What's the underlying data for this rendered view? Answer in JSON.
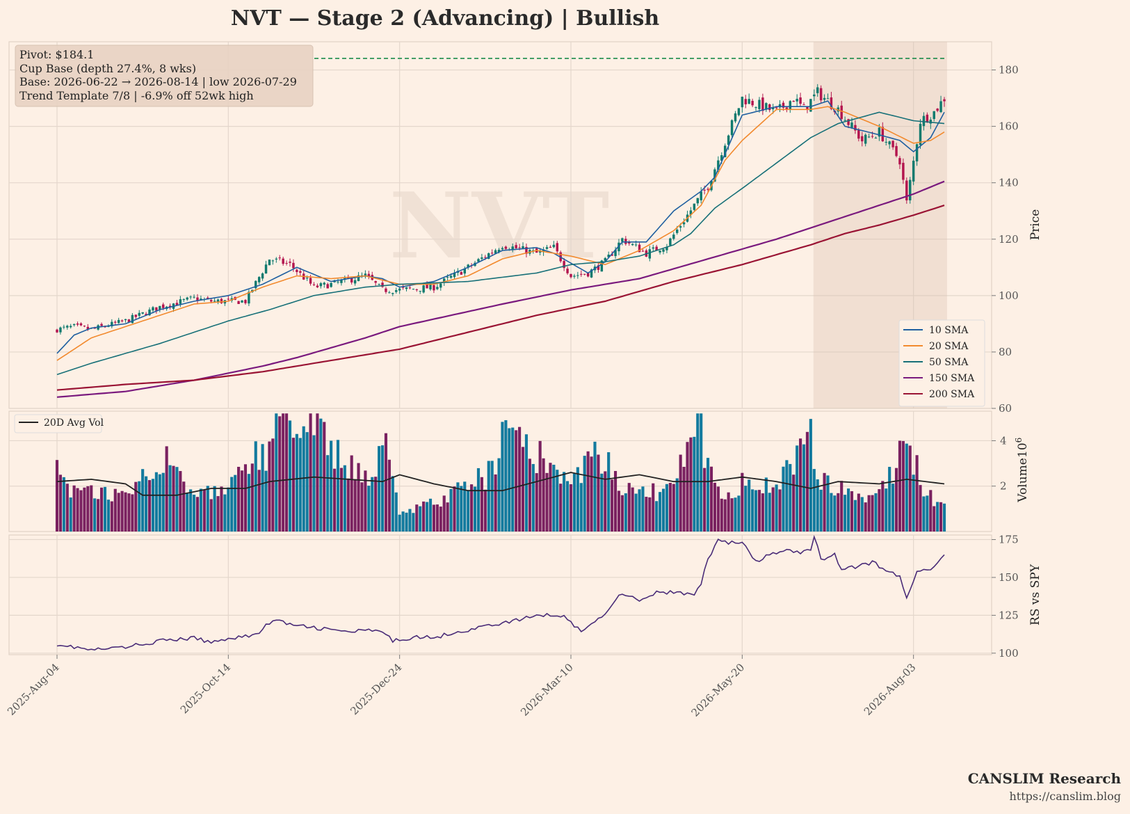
{
  "title": "NVT  —  Stage 2 (Advancing)  |  Bullish",
  "watermark": "NVT",
  "annotation": {
    "lines": [
      "Pivot: $184.1",
      "Cup Base  (depth 27.4%, 8 wks)",
      "Base: 2026-06-22 → 2026-08-14  |  low 2026-07-29",
      "Trend Template 7/8  |  -6.9% off 52wk high"
    ]
  },
  "branding": {
    "name": "CANSLIM Research",
    "url": "https://canslim.blog"
  },
  "chart_data": [
    {
      "type": "candlestick",
      "panel": "price",
      "ylabel": "Price",
      "ylim": [
        60,
        190
      ],
      "yticks": [
        60,
        80,
        100,
        120,
        140,
        160,
        180
      ],
      "x_tick_labels": [
        "2025-Aug-04",
        "2025-Oct-14",
        "2025-Dec-24",
        "2026-Mar-10",
        "2026-May-20",
        "2026-Aug-03"
      ],
      "x_tick_index": [
        0,
        50,
        100,
        150,
        200,
        250
      ],
      "n_bars": 260,
      "grid": true,
      "pivot": 184.1,
      "base_shade_index": [
        221,
        259
      ],
      "close_keypoints": [
        [
          0,
          88
        ],
        [
          5,
          89
        ],
        [
          10,
          88
        ],
        [
          20,
          91
        ],
        [
          30,
          96
        ],
        [
          40,
          99
        ],
        [
          45,
          98
        ],
        [
          55,
          98
        ],
        [
          62,
          113
        ],
        [
          68,
          111
        ],
        [
          75,
          103
        ],
        [
          80,
          104
        ],
        [
          90,
          107
        ],
        [
          95,
          102
        ],
        [
          100,
          102
        ],
        [
          110,
          103
        ],
        [
          120,
          110
        ],
        [
          130,
          118
        ],
        [
          140,
          115
        ],
        [
          145,
          117
        ],
        [
          150,
          107
        ],
        [
          155,
          108
        ],
        [
          160,
          112
        ],
        [
          165,
          120
        ],
        [
          172,
          115
        ],
        [
          178,
          118
        ],
        [
          190,
          139
        ],
        [
          200,
          170
        ],
        [
          210,
          165
        ],
        [
          215,
          170
        ],
        [
          218,
          166
        ],
        [
          222,
          172
        ],
        [
          228,
          166
        ],
        [
          235,
          155
        ],
        [
          240,
          158
        ],
        [
          246,
          148
        ],
        [
          248,
          133
        ],
        [
          252,
          162
        ],
        [
          256,
          165
        ],
        [
          259,
          170
        ]
      ],
      "series": [
        {
          "name": "10 SMA",
          "color": "#1f5fa0",
          "points": [
            [
              0,
              79.5
            ],
            [
              5,
              86
            ],
            [
              10,
              88.5
            ],
            [
              20,
              90
            ],
            [
              30,
              95
            ],
            [
              40,
              98
            ],
            [
              50,
              100
            ],
            [
              60,
              104
            ],
            [
              70,
              110
            ],
            [
              80,
              105
            ],
            [
              90,
              107
            ],
            [
              95,
              106
            ],
            [
              100,
              103
            ],
            [
              110,
              105
            ],
            [
              120,
              110
            ],
            [
              130,
              116
            ],
            [
              140,
              117
            ],
            [
              145,
              115
            ],
            [
              155,
              108
            ],
            [
              160,
              112
            ],
            [
              165,
              119
            ],
            [
              172,
              119
            ],
            [
              180,
              130
            ],
            [
              188,
              137
            ],
            [
              192,
              142
            ],
            [
              200,
              164
            ],
            [
              210,
              167
            ],
            [
              220,
              167
            ],
            [
              225,
              169
            ],
            [
              230,
              160
            ],
            [
              240,
              157
            ],
            [
              246,
              155
            ],
            [
              250,
              151
            ],
            [
              255,
              156
            ],
            [
              259,
              165
            ]
          ]
        },
        {
          "name": "20 SMA",
          "color": "#f28a2e",
          "points": [
            [
              0,
              77
            ],
            [
              10,
              85
            ],
            [
              20,
              89
            ],
            [
              30,
              93
            ],
            [
              40,
              97
            ],
            [
              50,
              98
            ],
            [
              60,
              103
            ],
            [
              70,
              107
            ],
            [
              80,
              106
            ],
            [
              90,
              107
            ],
            [
              100,
              104
            ],
            [
              110,
              104
            ],
            [
              120,
              107
            ],
            [
              130,
              113
            ],
            [
              140,
              116
            ],
            [
              150,
              114
            ],
            [
              160,
              111
            ],
            [
              170,
              116
            ],
            [
              180,
              123
            ],
            [
              188,
              132
            ],
            [
              195,
              148
            ],
            [
              200,
              155
            ],
            [
              210,
              166
            ],
            [
              220,
              166
            ],
            [
              225,
              167
            ],
            [
              230,
              165
            ],
            [
              240,
              160
            ],
            [
              250,
              154
            ],
            [
              255,
              155
            ],
            [
              259,
              158
            ]
          ]
        },
        {
          "name": "50 SMA",
          "color": "#177078",
          "points": [
            [
              0,
              72
            ],
            [
              10,
              76
            ],
            [
              30,
              83
            ],
            [
              50,
              91
            ],
            [
              62,
              95
            ],
            [
              75,
              100
            ],
            [
              90,
              103
            ],
            [
              100,
              104
            ],
            [
              120,
              105
            ],
            [
              140,
              108
            ],
            [
              150,
              111
            ],
            [
              160,
              112
            ],
            [
              170,
              114
            ],
            [
              180,
              118
            ],
            [
              185,
              122
            ],
            [
              192,
              131
            ],
            [
              200,
              138
            ],
            [
              210,
              147
            ],
            [
              220,
              156
            ],
            [
              228,
              161
            ],
            [
              240,
              165
            ],
            [
              250,
              162
            ],
            [
              259,
              161
            ]
          ]
        },
        {
          "name": "150 SMA",
          "color": "#7a1a7e",
          "points": [
            [
              0,
              64
            ],
            [
              20,
              66
            ],
            [
              40,
              70
            ],
            [
              60,
              75
            ],
            [
              70,
              78
            ],
            [
              90,
              85
            ],
            [
              100,
              89
            ],
            [
              130,
              97
            ],
            [
              150,
              102
            ],
            [
              170,
              106
            ],
            [
              190,
              113
            ],
            [
              210,
              120
            ],
            [
              220,
              124
            ],
            [
              230,
              128
            ],
            [
              240,
              132
            ],
            [
              250,
              136
            ],
            [
              259,
              140.5
            ]
          ]
        },
        {
          "name": "200 SMA",
          "color": "#9a1434",
          "points": [
            [
              0,
              66.5
            ],
            [
              20,
              68.5
            ],
            [
              40,
              70
            ],
            [
              60,
              73
            ],
            [
              80,
              77
            ],
            [
              100,
              81
            ],
            [
              120,
              87
            ],
            [
              140,
              93
            ],
            [
              160,
              98
            ],
            [
              180,
              105
            ],
            [
              200,
              111
            ],
            [
              220,
              118
            ],
            [
              230,
              122
            ],
            [
              240,
              125
            ],
            [
              250,
              128.5
            ],
            [
              259,
              132
            ]
          ]
        }
      ],
      "legend": "lower-right",
      "bull_color": "#0f7a6e",
      "bear_color": "#b3154e"
    },
    {
      "type": "bar",
      "panel": "volume",
      "ylabel": "Volume",
      "y_multiplier_base": "10",
      "y_multiplier_exp": "6",
      "ylim": [
        0,
        5.3
      ],
      "yticks": [
        2,
        4
      ],
      "series_name": "20D Avg Vol",
      "bar_colors": {
        "up": "#127a9e",
        "down": "#7a2160"
      },
      "avg_color": "#222222",
      "volume_keypoints": [
        [
          0,
          4.2
        ],
        [
          1,
          2.6
        ],
        [
          5,
          1.7
        ],
        [
          20,
          1.6
        ],
        [
          32,
          3.6
        ],
        [
          40,
          1.5
        ],
        [
          50,
          1.8
        ],
        [
          57,
          3.2
        ],
        [
          62,
          3.4
        ],
        [
          63,
          5.2
        ],
        [
          75,
          4.5
        ],
        [
          79,
          3.8
        ],
        [
          90,
          2.3
        ],
        [
          95,
          3.6
        ],
        [
          96,
          4.1
        ],
        [
          100,
          0.8
        ],
        [
          110,
          1.2
        ],
        [
          120,
          2.0
        ],
        [
          127,
          2.6
        ],
        [
          130,
          3.9
        ],
        [
          136,
          4.7
        ],
        [
          140,
          3.4
        ],
        [
          150,
          2.0
        ],
        [
          155,
          3.3
        ],
        [
          157,
          4.6
        ],
        [
          158,
          3.5
        ],
        [
          165,
          2.1
        ],
        [
          170,
          1.6
        ],
        [
          180,
          1.9
        ],
        [
          187,
          5.0
        ],
        [
          190,
          2.9
        ],
        [
          195,
          1.6
        ],
        [
          200,
          2.1
        ],
        [
          210,
          2.0
        ],
        [
          220,
          4.2
        ],
        [
          223,
          2.2
        ],
        [
          230,
          1.9
        ],
        [
          235,
          1.5
        ],
        [
          240,
          1.6
        ],
        [
          245,
          2.8
        ],
        [
          248,
          4.7
        ],
        [
          250,
          3.1
        ],
        [
          254,
          1.6
        ],
        [
          259,
          1.3
        ]
      ],
      "avg_keypoints": [
        [
          0,
          2.2
        ],
        [
          10,
          2.3
        ],
        [
          20,
          2.1
        ],
        [
          25,
          1.6
        ],
        [
          35,
          1.6
        ],
        [
          45,
          1.9
        ],
        [
          55,
          1.9
        ],
        [
          62,
          2.2
        ],
        [
          75,
          2.4
        ],
        [
          85,
          2.3
        ],
        [
          95,
          2.2
        ],
        [
          100,
          2.5
        ],
        [
          110,
          2.1
        ],
        [
          120,
          1.8
        ],
        [
          130,
          1.8
        ],
        [
          140,
          2.2
        ],
        [
          150,
          2.6
        ],
        [
          160,
          2.3
        ],
        [
          170,
          2.5
        ],
        [
          180,
          2.2
        ],
        [
          190,
          2.2
        ],
        [
          200,
          2.4
        ],
        [
          210,
          2.2
        ],
        [
          220,
          1.9
        ],
        [
          228,
          2.2
        ],
        [
          240,
          2.1
        ],
        [
          248,
          2.3
        ],
        [
          259,
          2.1
        ]
      ]
    },
    {
      "type": "line",
      "panel": "rs",
      "ylabel": "RS vs SPY",
      "ylim": [
        99,
        178
      ],
      "yticks": [
        100,
        125,
        150,
        175
      ],
      "color": "#4a2c78",
      "keypoints": [
        [
          0,
          106
        ],
        [
          5,
          104
        ],
        [
          10,
          102
        ],
        [
          20,
          104
        ],
        [
          30,
          108
        ],
        [
          40,
          110
        ],
        [
          45,
          107
        ],
        [
          50,
          110
        ],
        [
          58,
          112
        ],
        [
          63,
          122
        ],
        [
          70,
          118
        ],
        [
          78,
          116
        ],
        [
          85,
          114
        ],
        [
          90,
          115
        ],
        [
          95,
          114
        ],
        [
          98,
          108
        ],
        [
          105,
          111
        ],
        [
          110,
          110
        ],
        [
          116,
          114
        ],
        [
          120,
          115
        ],
        [
          125,
          118
        ],
        [
          133,
          121
        ],
        [
          140,
          125
        ],
        [
          145,
          125
        ],
        [
          148,
          125
        ],
        [
          150,
          120
        ],
        [
          153,
          115
        ],
        [
          157,
          120
        ],
        [
          160,
          127
        ],
        [
          165,
          140
        ],
        [
          170,
          135
        ],
        [
          175,
          140
        ],
        [
          182,
          140
        ],
        [
          186,
          138
        ],
        [
          188,
          146
        ],
        [
          190,
          162
        ],
        [
          193,
          175
        ],
        [
          196,
          173
        ],
        [
          200,
          173
        ],
        [
          204,
          160
        ],
        [
          208,
          165
        ],
        [
          213,
          168
        ],
        [
          217,
          166
        ],
        [
          220,
          168
        ],
        [
          221,
          178
        ],
        [
          223,
          162
        ],
        [
          227,
          165
        ],
        [
          229,
          155
        ],
        [
          235,
          158
        ],
        [
          238,
          160
        ],
        [
          242,
          155
        ],
        [
          246,
          150
        ],
        [
          248,
          136
        ],
        [
          251,
          155
        ],
        [
          256,
          156
        ],
        [
          259,
          165
        ]
      ]
    }
  ]
}
